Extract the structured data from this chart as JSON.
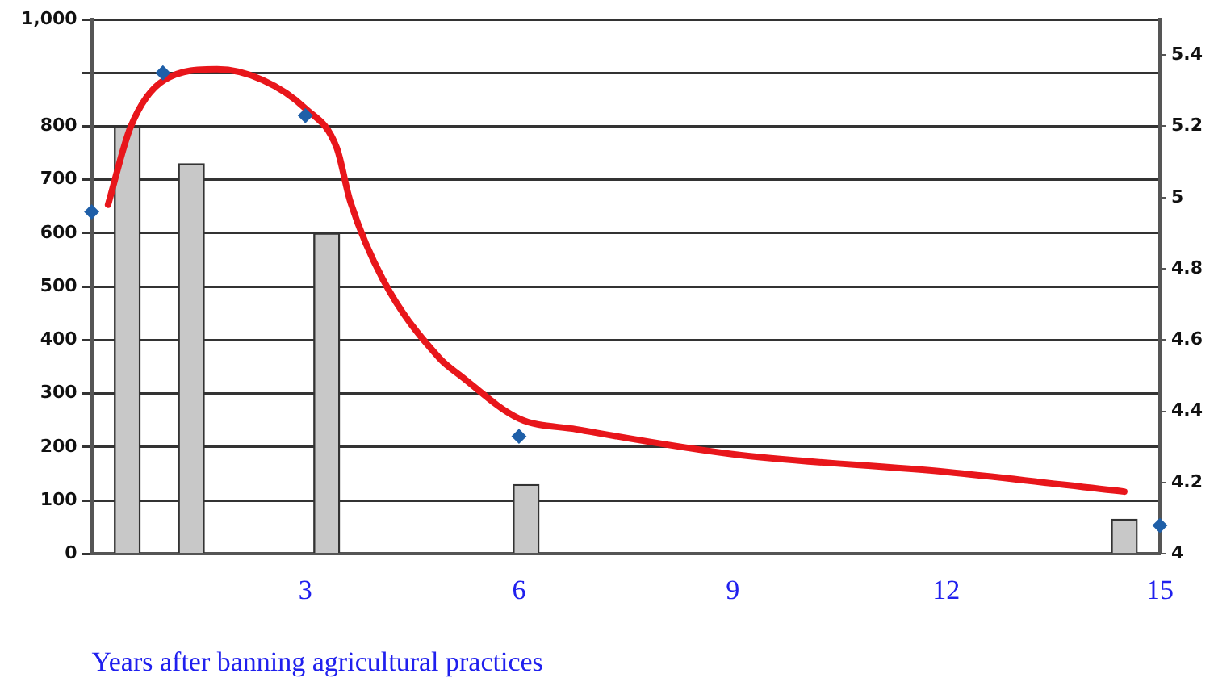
{
  "chart_data": {
    "type": "bar",
    "xlabel": "Years after banning agricultural practices",
    "xlim": [
      0,
      15
    ],
    "xticks": [
      3,
      6,
      9,
      12,
      15
    ],
    "ylim": [
      0,
      1000
    ],
    "yticks": [
      0,
      100,
      200,
      300,
      400,
      500,
      600,
      700,
      800,
      {
        "value": 900,
        "label": null
      },
      {
        "value": 1000,
        "label": "1,000"
      }
    ],
    "y2lim": [
      4,
      5.5
    ],
    "y2ticks": [
      4,
      4.2,
      4.4,
      4.6,
      4.8,
      5,
      5.2,
      5.4
    ],
    "grid": "y",
    "legend": false,
    "series": [
      {
        "x": [
          0.5,
          1.4,
          3.3,
          6.1,
          14.5
        ],
        "values": [
          800,
          730,
          600,
          130,
          65
        ],
        "color": "#c8c8c8"
      },
      {
        "type": "scatter",
        "axis": "y2",
        "marker": "diamond",
        "x": [
          0,
          1,
          3,
          6,
          15
        ],
        "values": [
          4.96,
          5.35,
          5.23,
          4.33,
          4.08
        ],
        "color": "#1f5fa8"
      },
      {
        "type": "line",
        "axis": "y2",
        "marker": "none",
        "x": [
          0.23,
          0.55,
          1.02,
          1.76,
          2.4,
          3.0,
          3.44,
          3.63,
          4.09,
          4.88,
          5.18,
          6.0,
          6.8,
          9.0,
          12.0,
          14.5
        ],
        "values": [
          4.98,
          5.2,
          5.33,
          5.36,
          5.33,
          5.25,
          5.14,
          4.99,
          4.77,
          4.55,
          4.5,
          4.38,
          4.35,
          4.28,
          4.23,
          4.175
        ],
        "color": "#e8161b"
      }
    ]
  }
}
